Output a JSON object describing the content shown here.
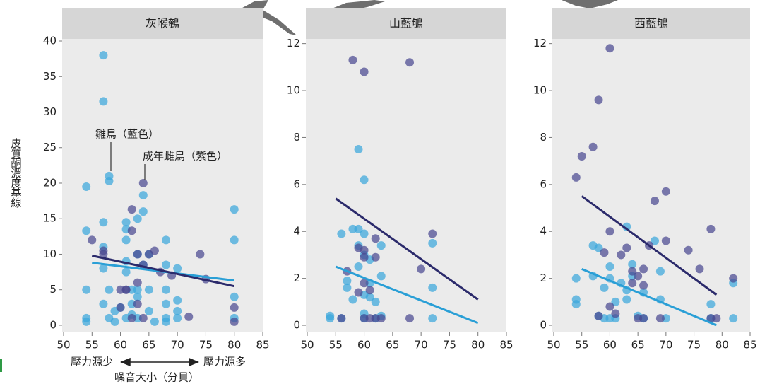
{
  "figure": {
    "y_label": "皮質酮濃度基線",
    "x_label": "噪音大小（分貝）",
    "x_low": "壓力源少",
    "x_high": "壓力源多"
  },
  "chart_data": [
    {
      "type": "scatter",
      "title": "灰喉鵪",
      "xlim": [
        50,
        85
      ],
      "ylim": [
        -1,
        40.3
      ],
      "xticks": [
        50,
        55,
        60,
        65,
        70,
        75,
        80,
        85
      ],
      "yticks": [
        0,
        5,
        10,
        15,
        20,
        25,
        30,
        35,
        40
      ],
      "annotations": [
        {
          "text": "雛鳥（藍色）"
        },
        {
          "text": "成年雌鳥（紫色）"
        }
      ],
      "series": [
        {
          "kind": "points",
          "color": "#3aa6db",
          "x": [
            54,
            54,
            54,
            54,
            57,
            57,
            58,
            58,
            57,
            57,
            57,
            57,
            58,
            58,
            59,
            59,
            60,
            61,
            61,
            61,
            61,
            61,
            61,
            62,
            62,
            62,
            63,
            63,
            63,
            63,
            63,
            64,
            64,
            64,
            65,
            65,
            65,
            66,
            68,
            68,
            68,
            68,
            68,
            70,
            70,
            70,
            70,
            80,
            80,
            80,
            80,
            68,
            54
          ],
          "values": [
            19.5,
            13.3,
            5,
            1,
            38,
            31.5,
            21,
            20.3,
            14.5,
            11,
            8,
            3,
            5,
            1,
            2,
            0.5,
            2.5,
            12,
            14.5,
            13.5,
            9,
            7.5,
            1,
            5,
            3,
            1.5,
            15,
            10,
            5,
            4,
            1,
            18.3,
            16,
            8.5,
            10,
            5,
            2,
            0.5,
            12,
            8.5,
            5,
            3,
            1,
            8,
            3.5,
            2,
            1,
            16.3,
            12,
            4,
            1,
            0.5,
            0.5
          ]
        },
        {
          "kind": "points",
          "color": "#4a4890",
          "x": [
            55,
            57,
            57,
            60,
            61,
            62,
            62,
            63,
            63,
            63,
            64,
            64,
            65,
            66,
            67,
            69,
            72,
            74,
            75,
            80,
            80,
            60,
            61,
            64,
            62
          ],
          "values": [
            12,
            10.5,
            10,
            2.5,
            5,
            16.3,
            13.3,
            10,
            6,
            3,
            20,
            8.5,
            10,
            10.5,
            7.5,
            7,
            1.2,
            10,
            6.5,
            2.5,
            0.5,
            5,
            5,
            1,
            1
          ]
        },
        {
          "kind": "line",
          "color": "#2a9fd6",
          "x": [
            55,
            80
          ],
          "values": [
            8.8,
            6.3
          ]
        },
        {
          "kind": "line",
          "color": "#2b2a6b",
          "x": [
            55,
            80
          ],
          "values": [
            9.8,
            5.5
          ]
        }
      ]
    },
    {
      "type": "scatter",
      "title": "山藍鴝",
      "xlim": [
        50,
        85
      ],
      "ylim": [
        -0.3,
        12.2
      ],
      "xticks": [
        50,
        55,
        60,
        65,
        70,
        75,
        80,
        85
      ],
      "yticks": [
        0,
        2,
        4,
        6,
        8,
        10,
        12
      ],
      "series": [
        {
          "kind": "points",
          "color": "#3aa6db",
          "x": [
            54,
            54,
            56,
            56,
            57,
            57,
            58,
            58,
            59,
            59,
            59,
            60,
            60,
            60,
            60,
            60,
            60,
            61,
            61,
            61,
            62,
            62,
            63,
            63,
            63,
            72,
            72,
            72,
            59
          ],
          "values": [
            0.4,
            0.3,
            0.3,
            3.9,
            1.9,
            1.6,
            4.1,
            1.1,
            3.4,
            2.5,
            7.5,
            6.2,
            3.9,
            3.0,
            1.3,
            0.5,
            0.3,
            2.8,
            1.8,
            1.2,
            0.3,
            1.0,
            3.4,
            2.1,
            0.4,
            3.5,
            1.6,
            0.3,
            4.1
          ]
        },
        {
          "kind": "points",
          "color": "#4a4890",
          "x": [
            58,
            60,
            68,
            59,
            60,
            60,
            60,
            60,
            61,
            62,
            62,
            62,
            57,
            59,
            70,
            72,
            68,
            56,
            61,
            63
          ],
          "values": [
            11.3,
            10.8,
            11.2,
            3.3,
            3.2,
            2.9,
            1.8,
            0.3,
            1.5,
            3.7,
            2.9,
            0.3,
            2.3,
            1.4,
            2.4,
            3.9,
            0.3,
            0.3,
            0.3,
            0.3
          ]
        },
        {
          "kind": "line",
          "color": "#2a9fd6",
          "x": [
            55,
            80
          ],
          "values": [
            2.5,
            0.1
          ]
        },
        {
          "kind": "line",
          "color": "#2b2a6b",
          "x": [
            55,
            80
          ],
          "values": [
            5.4,
            1.1
          ]
        }
      ]
    },
    {
      "type": "scatter",
      "title": "西藍鴝",
      "xlim": [
        50,
        85
      ],
      "ylim": [
        -0.3,
        12.2
      ],
      "xticks": [
        50,
        55,
        60,
        65,
        70,
        75,
        80,
        85
      ],
      "yticks": [
        0,
        2,
        4,
        6,
        8,
        10,
        12
      ],
      "series": [
        {
          "kind": "points",
          "color": "#3aa6db",
          "x": [
            54,
            54,
            54,
            57,
            57,
            58,
            58,
            59,
            59,
            60,
            60,
            61,
            61,
            62,
            63,
            63,
            63,
            64,
            64,
            65,
            66,
            66,
            68,
            69,
            69,
            70,
            78,
            78,
            82,
            82,
            60
          ],
          "values": [
            2,
            1.1,
            0.9,
            3.4,
            2.1,
            3.3,
            0.4,
            1.6,
            0.3,
            2.5,
            2.0,
            1.0,
            0.3,
            1.8,
            1.5,
            1.1,
            4.2,
            2.6,
            2.1,
            0.4,
            1.4,
            0.3,
            3.6,
            2.3,
            1.1,
            0.3,
            0.9,
            0.3,
            1.8,
            0.3,
            0.3
          ]
        },
        {
          "kind": "points",
          "color": "#4a4890",
          "x": [
            54,
            55,
            57,
            58,
            60,
            60,
            62,
            63,
            64,
            64,
            65,
            66,
            66,
            66,
            67,
            68,
            69,
            70,
            70,
            74,
            76,
            78,
            78,
            79,
            82,
            60,
            61,
            65,
            59,
            58
          ],
          "values": [
            6.3,
            7.2,
            7.6,
            9.6,
            11.8,
            4.0,
            3.0,
            3.3,
            2.3,
            1.8,
            0.3,
            2.4,
            1.7,
            0.3,
            3.4,
            5.3,
            0.3,
            5.7,
            3.6,
            3.2,
            2.4,
            4.1,
            0.3,
            0.3,
            2.0,
            0.8,
            0.5,
            2.1,
            3.1,
            0.4
          ]
        },
        {
          "kind": "line",
          "color": "#2a9fd6",
          "x": [
            55,
            79
          ],
          "values": [
            2.4,
            0
          ]
        },
        {
          "kind": "line",
          "color": "#2b2a6b",
          "x": [
            55,
            79
          ],
          "values": [
            5.5,
            1.3
          ]
        }
      ]
    }
  ]
}
